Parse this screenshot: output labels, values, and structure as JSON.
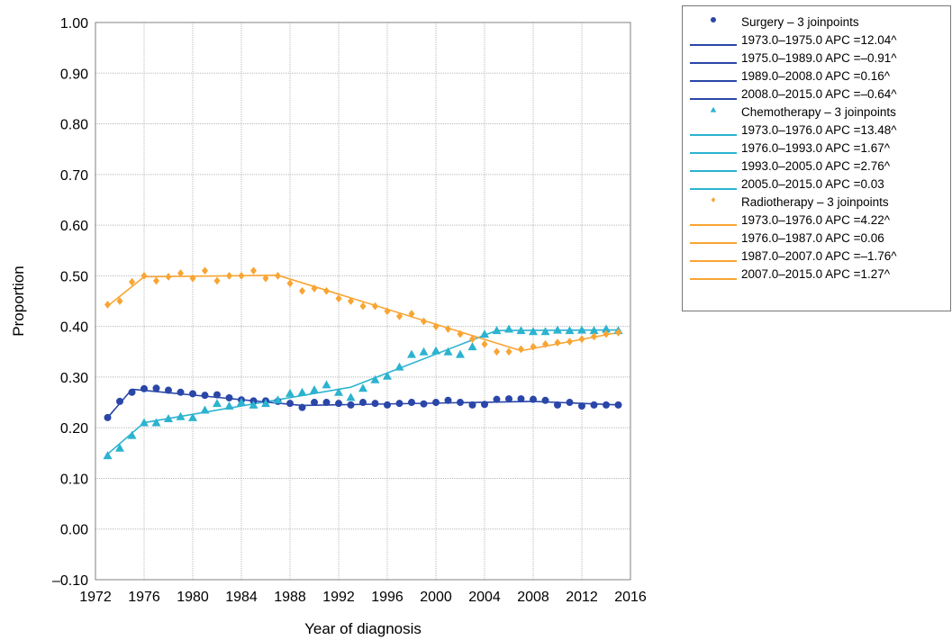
{
  "chart_data": {
    "type": "scatter",
    "title": "",
    "xlabel": "Year of diagnosis",
    "ylabel": "Proportion",
    "xlim": [
      1972,
      2016
    ],
    "ylim": [
      -0.1,
      1.0
    ],
    "x_ticks": [
      "1972",
      "1976",
      "1980",
      "1984",
      "1988",
      "1992",
      "1996",
      "2000",
      "2004",
      "2008",
      "2012",
      "2016"
    ],
    "y_ticks": [
      "1.00",
      "0.90",
      "0.80",
      "0.70",
      "0.60",
      "0.50",
      "0.40",
      "0.30",
      "0.20",
      "0.10",
      "0.00",
      "–0.10"
    ],
    "grid": true,
    "legend_position": "right",
    "series": [
      {
        "name": "Surgery – 3 joinpoints",
        "marker": "circle",
        "color": "#2a46a8",
        "x": [
          1973,
          1974,
          1975,
          1976,
          1977,
          1978,
          1979,
          1980,
          1981,
          1982,
          1983,
          1984,
          1985,
          1986,
          1987,
          1988,
          1989,
          1990,
          1991,
          1992,
          1993,
          1994,
          1995,
          1996,
          1997,
          1998,
          1999,
          2000,
          2001,
          2002,
          2003,
          2004,
          2005,
          2006,
          2007,
          2008,
          2009,
          2010,
          2011,
          2012,
          2013,
          2014,
          2015
        ],
        "y": [
          0.22,
          0.252,
          0.27,
          0.277,
          0.278,
          0.274,
          0.27,
          0.267,
          0.264,
          0.265,
          0.259,
          0.255,
          0.253,
          0.253,
          0.252,
          0.248,
          0.24,
          0.25,
          0.25,
          0.248,
          0.245,
          0.25,
          0.248,
          0.245,
          0.248,
          0.25,
          0.247,
          0.25,
          0.254,
          0.25,
          0.245,
          0.246,
          0.256,
          0.257,
          0.257,
          0.256,
          0.254,
          0.245,
          0.25,
          0.243,
          0.245,
          0.245,
          0.245
        ],
        "trend_segments": [
          {
            "label": "1973.0–1975.0 APC =12.04^",
            "x": [
              1973,
              1975
            ],
            "y": [
              0.22,
              0.276
            ]
          },
          {
            "label": "1975.0–1989.0 APC =–0.91^",
            "x": [
              1975,
              1989
            ],
            "y": [
              0.276,
              0.244
            ]
          },
          {
            "label": "1989.0–2008.0 APC =0.16^",
            "x": [
              1989,
              2008
            ],
            "y": [
              0.244,
              0.252
            ]
          },
          {
            "label": "2008.0–2015.0 APC =–0.64^",
            "x": [
              2008,
              2015
            ],
            "y": [
              0.252,
              0.245
            ]
          }
        ]
      },
      {
        "name": "Chemotherapy – 3 joinpoints",
        "marker": "triangle",
        "color": "#2bb3cf",
        "x": [
          1973,
          1974,
          1975,
          1976,
          1977,
          1978,
          1979,
          1980,
          1981,
          1982,
          1983,
          1984,
          1985,
          1986,
          1987,
          1988,
          1989,
          1990,
          1991,
          1992,
          1993,
          1994,
          1995,
          1996,
          1997,
          1998,
          1999,
          2000,
          2001,
          2002,
          2003,
          2004,
          2005,
          2006,
          2007,
          2008,
          2009,
          2010,
          2011,
          2012,
          2013,
          2014,
          2015
        ],
        "y": [
          0.145,
          0.16,
          0.185,
          0.21,
          0.21,
          0.218,
          0.222,
          0.22,
          0.235,
          0.248,
          0.243,
          0.25,
          0.245,
          0.248,
          0.255,
          0.268,
          0.27,
          0.275,
          0.285,
          0.27,
          0.26,
          0.278,
          0.295,
          0.302,
          0.32,
          0.345,
          0.35,
          0.352,
          0.35,
          0.345,
          0.36,
          0.385,
          0.392,
          0.395,
          0.392,
          0.39,
          0.39,
          0.393,
          0.392,
          0.393,
          0.392,
          0.395,
          0.392
        ],
        "trend_segments": [
          {
            "label": "1973.0–1976.0 APC =13.48^",
            "x": [
              1973,
              1976
            ],
            "y": [
              0.148,
              0.21
            ]
          },
          {
            "label": "1976.0–1993.0 APC =1.67^",
            "x": [
              1976,
              1993
            ],
            "y": [
              0.21,
              0.28
            ]
          },
          {
            "label": "1993.0–2005.0 APC =2.76^",
            "x": [
              1993,
              2005
            ],
            "y": [
              0.28,
              0.392
            ]
          },
          {
            "label": "2005.0–2015.0 APC =0.03",
            "x": [
              2005,
              2015
            ],
            "y": [
              0.392,
              0.393
            ]
          }
        ]
      },
      {
        "name": "Radiotherapy – 3 joinpoints",
        "marker": "diamond",
        "color": "#f9a533",
        "x": [
          1973,
          1974,
          1975,
          1976,
          1977,
          1978,
          1979,
          1980,
          1981,
          1982,
          1983,
          1984,
          1985,
          1986,
          1987,
          1988,
          1989,
          1990,
          1991,
          1992,
          1993,
          1994,
          1995,
          1996,
          1997,
          1998,
          1999,
          2000,
          2001,
          2002,
          2003,
          2004,
          2005,
          2006,
          2007,
          2008,
          2009,
          2010,
          2011,
          2012,
          2013,
          2014,
          2015
        ],
        "y": [
          0.443,
          0.45,
          0.488,
          0.5,
          0.49,
          0.498,
          0.505,
          0.495,
          0.51,
          0.49,
          0.5,
          0.5,
          0.51,
          0.495,
          0.5,
          0.485,
          0.47,
          0.475,
          0.47,
          0.455,
          0.45,
          0.44,
          0.44,
          0.43,
          0.42,
          0.425,
          0.41,
          0.4,
          0.395,
          0.385,
          0.375,
          0.365,
          0.35,
          0.35,
          0.355,
          0.36,
          0.365,
          0.368,
          0.37,
          0.375,
          0.38,
          0.385,
          0.388
        ],
        "trend_segments": [
          {
            "label": "1973.0–1976.0 APC =4.22^",
            "x": [
              1973,
              1976
            ],
            "y": [
              0.44,
              0.498
            ]
          },
          {
            "label": "1976.0–1987.0 APC =0.06",
            "x": [
              1976,
              1987
            ],
            "y": [
              0.498,
              0.501
            ]
          },
          {
            "label": "1987.0–2007.0 APC =–1.76^",
            "x": [
              1987,
              2007
            ],
            "y": [
              0.501,
              0.352
            ]
          },
          {
            "label": "2007.0–2015.0 APC =1.27^",
            "x": [
              2007,
              2015
            ],
            "y": [
              0.352,
              0.388
            ]
          }
        ]
      }
    ]
  }
}
